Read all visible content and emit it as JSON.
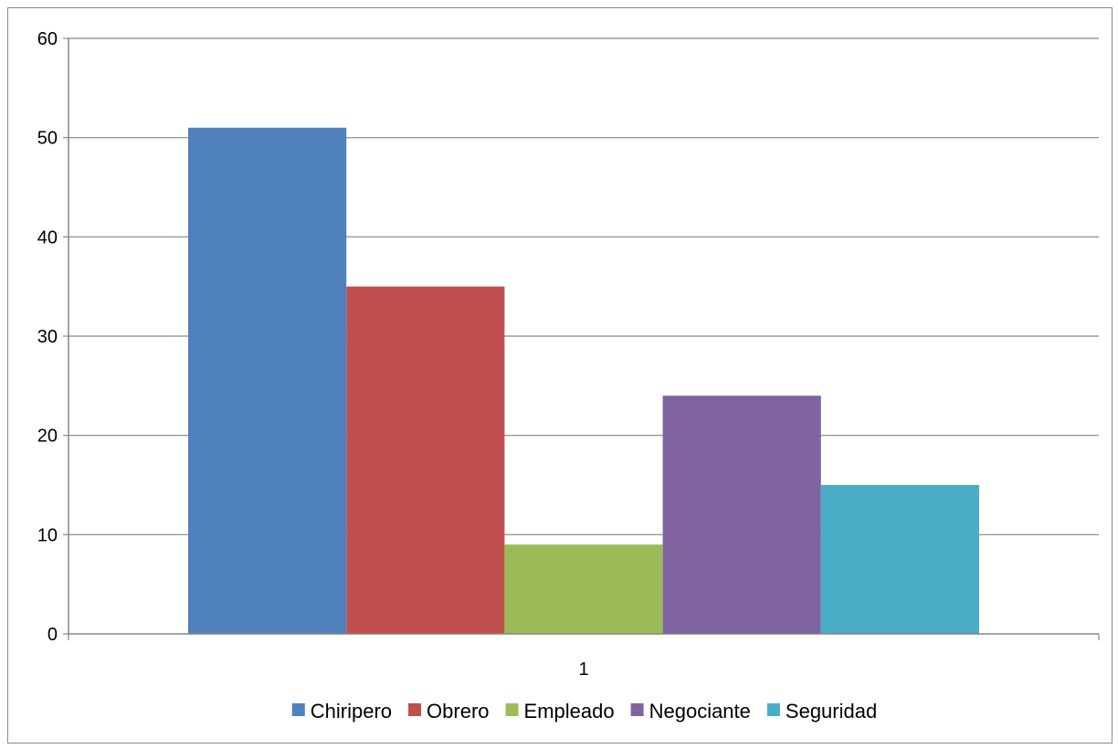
{
  "chart_data": {
    "type": "bar",
    "title": "",
    "xlabel": "",
    "ylabel": "",
    "categories": [
      "1"
    ],
    "series": [
      {
        "name": "Chiripero",
        "values": [
          51
        ],
        "color": "#4f81bd"
      },
      {
        "name": "Obrero",
        "values": [
          35
        ],
        "color": "#c0504d"
      },
      {
        "name": "Empleado",
        "values": [
          9
        ],
        "color": "#9bbb59"
      },
      {
        "name": "Negociante",
        "values": [
          24
        ],
        "color": "#8064a2"
      },
      {
        "name": "Seguridad",
        "values": [
          15
        ],
        "color": "#4bacc6"
      }
    ],
    "ylim": [
      0,
      60
    ],
    "yticks": [
      0,
      10,
      20,
      30,
      40,
      50,
      60
    ],
    "grid": true,
    "legend_position": "bottom"
  }
}
